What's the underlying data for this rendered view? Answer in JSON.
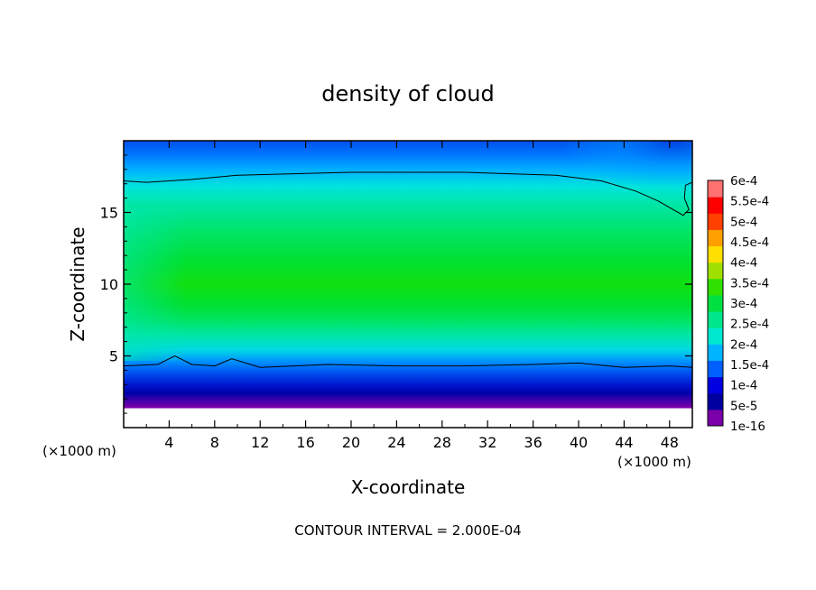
{
  "chart_data": {
    "type": "heatmap",
    "title": "density of cloud",
    "xlabel": "X-coordinate",
    "ylabel": "Z-coordinate",
    "x_unit": "(×1000 m)",
    "x_unit_right": "(×1000 m)",
    "xlim": [
      0,
      50
    ],
    "ylim": [
      0,
      20
    ],
    "x_ticks": [
      "4",
      "8",
      "12",
      "16",
      "20",
      "24",
      "28",
      "32",
      "36",
      "40",
      "44",
      "48"
    ],
    "x_tick_values": [
      4,
      8,
      12,
      16,
      20,
      24,
      28,
      32,
      36,
      40,
      44,
      48
    ],
    "y_ticks": [
      "5",
      "10",
      "15"
    ],
    "y_tick_values": [
      5,
      10,
      15
    ],
    "footer": "CONTOUR INTERVAL = 2.000E-04",
    "colorbar": {
      "labels": [
        "1e-16",
        "5e-5",
        "1e-4",
        "1.5e-4",
        "2e-4",
        "2.5e-4",
        "3e-4",
        "3.5e-4",
        "4e-4",
        "4.5e-4",
        "5e-4",
        "5.5e-4",
        "6e-4"
      ],
      "colors": [
        "#7b00aa",
        "#0000a0",
        "#0000e0",
        "#0060ff",
        "#00b4ff",
        "#00e8d0",
        "#00e68c",
        "#00e040",
        "#30e000",
        "#a0e000",
        "#ffe000",
        "#ffa000",
        "#ff4000",
        "#ff0000",
        "#ff7070"
      ]
    },
    "contour_2e-4": {
      "upper": [
        [
          0,
          17.2
        ],
        [
          2,
          17.1
        ],
        [
          6,
          17.3
        ],
        [
          10,
          17.6
        ],
        [
          20,
          17.8
        ],
        [
          30,
          17.8
        ],
        [
          38,
          17.6
        ],
        [
          42,
          17.2
        ],
        [
          45,
          16.5
        ],
        [
          47,
          15.8
        ],
        [
          49.2,
          14.8
        ],
        [
          49.7,
          15.2
        ],
        [
          49.3,
          16
        ],
        [
          49.4,
          16.9
        ],
        [
          50,
          17.1
        ]
      ],
      "lower": [
        [
          0,
          4.3
        ],
        [
          3,
          4.4
        ],
        [
          4.5,
          5.0
        ],
        [
          6,
          4.4
        ],
        [
          8,
          4.3
        ],
        [
          9.5,
          4.8
        ],
        [
          12,
          4.2
        ],
        [
          18,
          4.4
        ],
        [
          24,
          4.3
        ],
        [
          30,
          4.3
        ],
        [
          36,
          4.4
        ],
        [
          40,
          4.5
        ],
        [
          44,
          4.2
        ],
        [
          48,
          4.3
        ],
        [
          50,
          4.2
        ]
      ]
    }
  }
}
